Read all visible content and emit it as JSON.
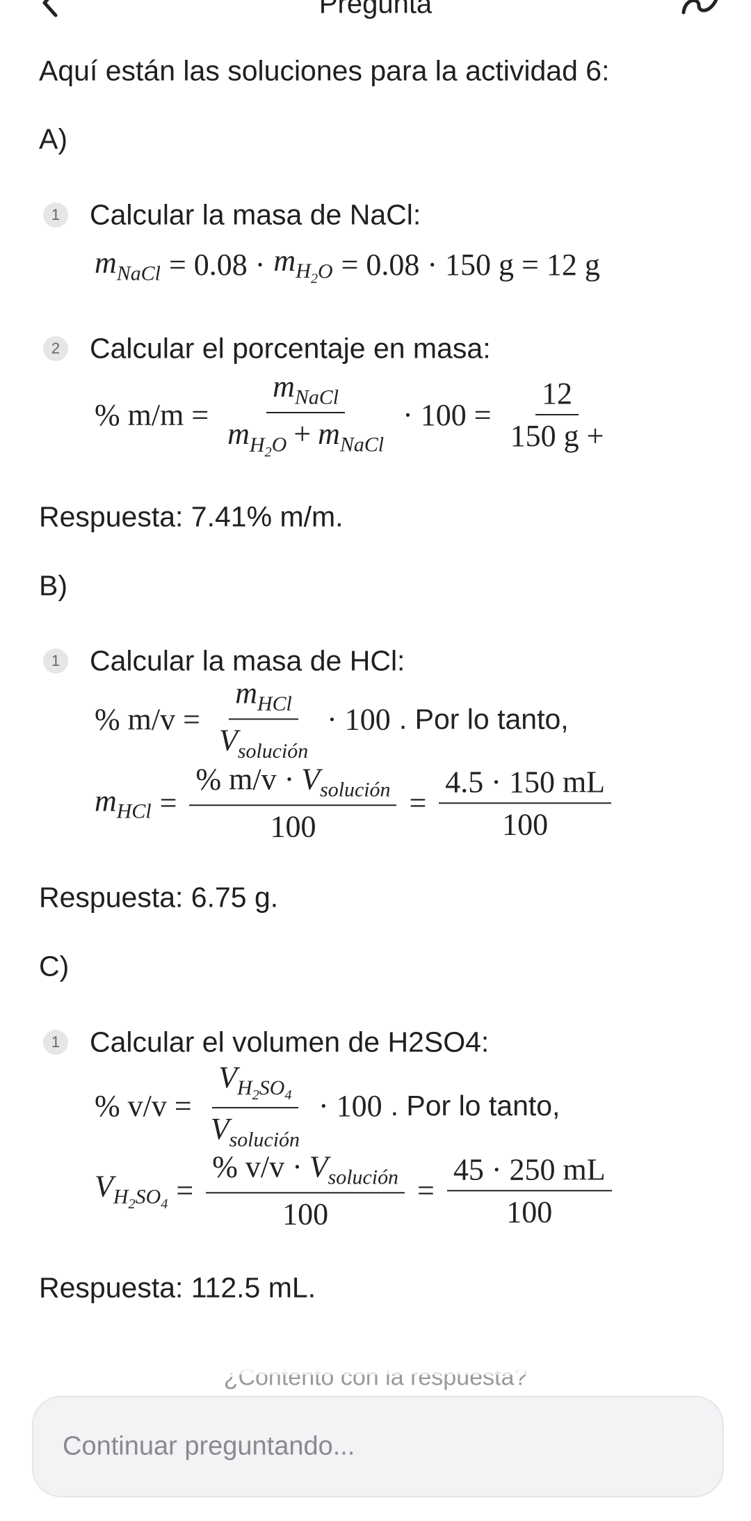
{
  "header": {
    "title": "Pregunta"
  },
  "intro": "Aquí están las soluciones para la actividad 6:",
  "sections": [
    {
      "label": "A)",
      "steps": [
        {
          "number": "1",
          "text": "Calcular la masa de NaCl:",
          "formulas": [
            [
              {
                "base": "m",
                "sub": [
                  "NaCl"
                ]
              },
              "= 0.08 ·",
              {
                "base": "m",
                "sub": [
                  {
                    "base": "H",
                    "sub": [
                      "2"
                    ]
                  },
                  "O"
                ]
              },
              "= 0.08 · 150 g = 12 g"
            ]
          ]
        },
        {
          "number": "2",
          "text": "Calcular el porcentaje en masa:",
          "formulas": [
            [
              "% m/m =",
              {
                "num": [
                  {
                    "base": "m",
                    "sub": [
                      "NaCl"
                    ]
                  }
                ],
                "den": [
                  {
                    "base": "m",
                    "sub": [
                      {
                        "base": "H",
                        "sub": [
                          "2"
                        ]
                      },
                      "O"
                    ]
                  },
                  "+",
                  {
                    "base": "m",
                    "sub": [
                      "NaCl"
                    ]
                  }
                ]
              },
              "· 100 =",
              {
                "num": [
                  "12"
                ],
                "den": [
                  "150 g +"
                ]
              }
            ]
          ]
        }
      ],
      "answer": "Respuesta: 7.41% m/m."
    },
    {
      "label": "B)",
      "steps": [
        {
          "number": "1",
          "text": "Calcular la masa de HCl:",
          "formulas": [
            [
              "% m/v =",
              {
                "num": [
                  {
                    "base": "m",
                    "sub": [
                      "HCl"
                    ]
                  }
                ],
                "den": [
                  {
                    "base": "V",
                    "sub": [
                      "solución"
                    ]
                  }
                ]
              },
              "· 100",
              {
                "text": ". Por lo tanto,"
              }
            ],
            [
              {
                "base": "m",
                "sub": [
                  "HCl"
                ]
              },
              "=",
              {
                "num": [
                  "% m/v ·",
                  {
                    "base": "V",
                    "sub": [
                      "solución"
                    ]
                  }
                ],
                "den": [
                  "100"
                ]
              },
              "=",
              {
                "num": [
                  "4.5 · 150 mL"
                ],
                "den": [
                  "100"
                ]
              }
            ]
          ]
        }
      ],
      "answer": "Respuesta: 6.75 g."
    },
    {
      "label": "C)",
      "steps": [
        {
          "number": "1",
          "text": "Calcular el volumen de H2SO4:",
          "formulas": [
            [
              "% v/v =",
              {
                "num": [
                  {
                    "base": "V",
                    "sub": [
                      {
                        "base": "H",
                        "sub": [
                          "2"
                        ]
                      },
                      {
                        "base": "SO",
                        "sub": [
                          "4"
                        ]
                      }
                    ]
                  }
                ],
                "den": [
                  {
                    "base": "V",
                    "sub": [
                      "solución"
                    ]
                  }
                ]
              },
              "· 100",
              {
                "text": ". Por lo tanto,"
              }
            ],
            [
              {
                "base": "V",
                "sub": [
                  {
                    "base": "H",
                    "sub": [
                      "2"
                    ]
                  },
                  {
                    "base": "SO",
                    "sub": [
                      "4"
                    ]
                  }
                ]
              },
              "=",
              {
                "num": [
                  "% v/v ·",
                  {
                    "base": "V",
                    "sub": [
                      "solución"
                    ]
                  }
                ],
                "den": [
                  "100"
                ]
              },
              "=",
              {
                "num": [
                  "45 · 250 mL"
                ],
                "den": [
                  "100"
                ]
              }
            ]
          ]
        }
      ],
      "answer": "Respuesta: 112.5 mL."
    }
  ],
  "footer": {
    "prompt": "¿Contento con la respuesta?",
    "input_placeholder": "Continuar preguntando..."
  }
}
